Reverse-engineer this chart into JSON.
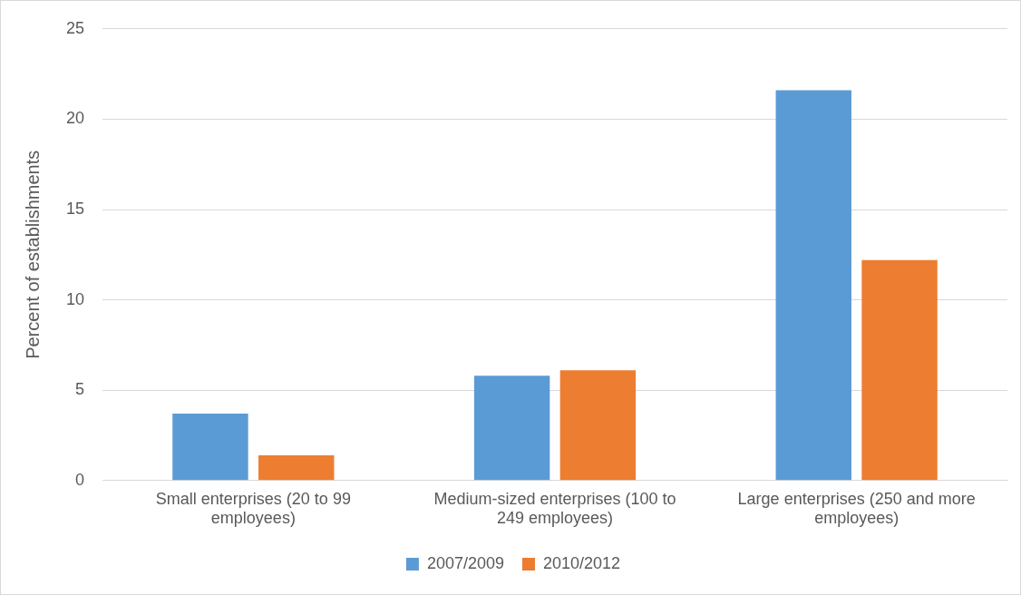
{
  "chart_data": {
    "type": "bar",
    "ylabel": "Percent of establishments",
    "categories": [
      "Small enterprises (20 to 99 employees)",
      "Medium-sized enterprises (100 to 249 employees)",
      "Large enterprises (250 and more employees)"
    ],
    "series": [
      {
        "name": "2007/2009",
        "color": "#5b9bd5",
        "values": [
          3.7,
          5.8,
          21.6
        ]
      },
      {
        "name": "2010/2012",
        "color": "#ed7d31",
        "values": [
          1.4,
          6.1,
          12.2
        ]
      }
    ],
    "ylim": [
      0,
      25
    ],
    "yticks": [
      0,
      5,
      10,
      15,
      20,
      25
    ],
    "grid": "y",
    "legend": "bottom"
  }
}
